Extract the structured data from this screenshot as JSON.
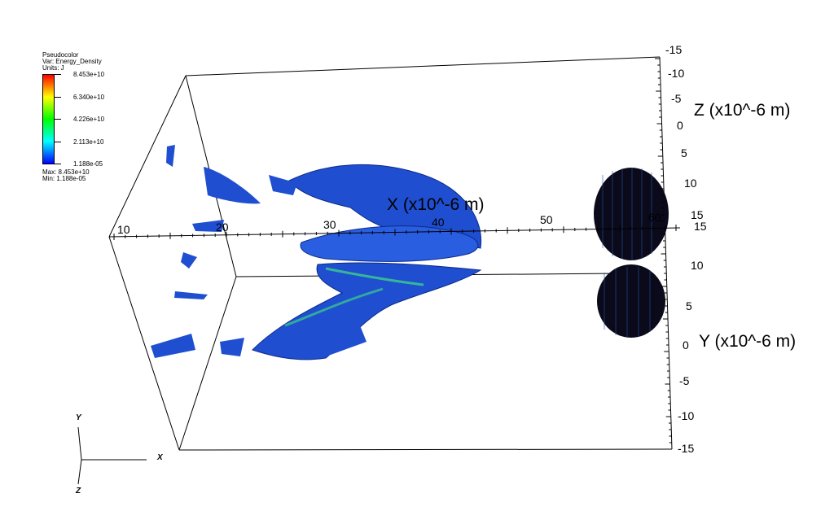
{
  "legend": {
    "plot_type": "Pseudocolor",
    "var_line": "Var: Energy_Density",
    "units_line": "Units: J",
    "tick_labels": [
      "8.453e+10",
      "6.340e+10",
      "4.226e+10",
      "2.113e+10",
      "1.188e-05"
    ],
    "max_line": "Max:  8.453e+10",
    "min_line": "Min:  1.188e-05",
    "colors": [
      "#ff0000",
      "#ffff00",
      "#00ff00",
      "#00ffff",
      "#0000ff"
    ]
  },
  "axes": {
    "x_title": "X (x10^-6 m)",
    "y_title": "Y (x10^-6 m)",
    "z_title": "Z (x10^-6 m)",
    "x_ticks": [
      "10",
      "20",
      "30",
      "40",
      "50",
      "60"
    ],
    "z_ticks": [
      "-15",
      "-10",
      "-5",
      "0",
      "5",
      "10",
      "15"
    ],
    "y_ticks": [
      "15",
      "10",
      "5",
      "0",
      "-5",
      "-10",
      "-15"
    ]
  },
  "triad": {
    "x": "X",
    "y": "Y",
    "z": "Z"
  },
  "colors": {
    "surface_blue": "#1f4fd0",
    "surface_dark": "#0b2a8a",
    "surface_green": "#3bd08a",
    "laser_dark": "#0a0a1a"
  }
}
